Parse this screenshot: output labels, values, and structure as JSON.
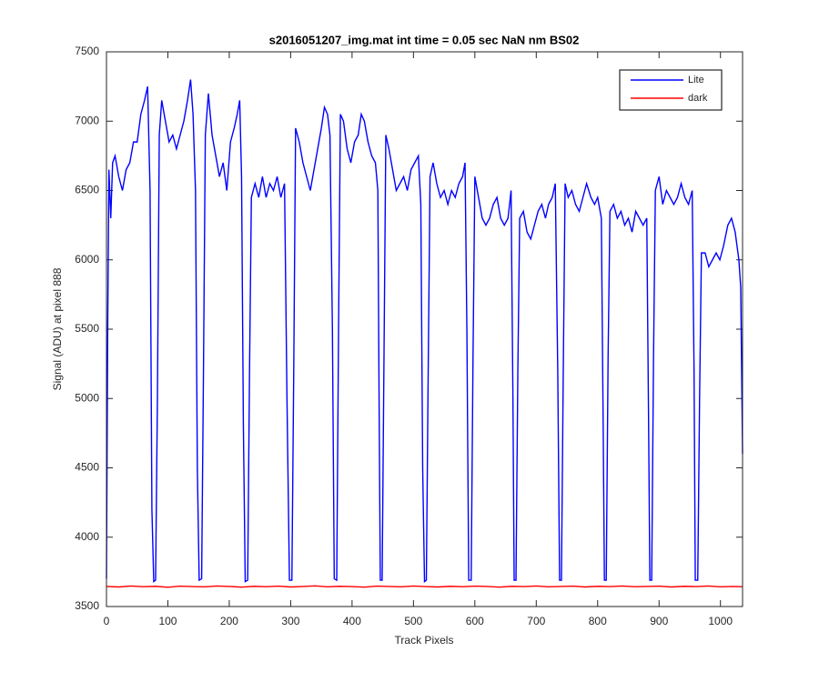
{
  "chart_data": {
    "type": "line",
    "title": "s2016051207_img.mat int time = 0.05 sec  NaN nm BS02",
    "x_label": "Track Pixels",
    "y_label": "Signal (ADU) at pixel 888",
    "xlim": [
      0,
      1036
    ],
    "ylim": [
      3500,
      7500
    ],
    "xticks": [
      0,
      100,
      200,
      300,
      400,
      500,
      600,
      700,
      800,
      900,
      1000
    ],
    "yticks": [
      3500,
      4000,
      4500,
      5000,
      5500,
      6000,
      6500,
      7000,
      7500
    ],
    "legend": "northeast",
    "series": [
      {
        "name": "Lite",
        "color": "#0000ff",
        "x": [
          0,
          2,
          4,
          7,
          10,
          14,
          20,
          26,
          32,
          38,
          44,
          50,
          56,
          62,
          67,
          71,
          74,
          77,
          80,
          83,
          86,
          90,
          96,
          102,
          108,
          114,
          120,
          126,
          132,
          137,
          141,
          145,
          148,
          151,
          155,
          158,
          161,
          166,
          172,
          178,
          184,
          190,
          196,
          202,
          208,
          213,
          217,
          220,
          223,
          226,
          230,
          233,
          236,
          242,
          248,
          254,
          260,
          266,
          272,
          278,
          284,
          290,
          294,
          298,
          302,
          305,
          308,
          314,
          320,
          326,
          332,
          338,
          344,
          350,
          355,
          360,
          364,
          368,
          371,
          375,
          378,
          381,
          386,
          392,
          398,
          404,
          410,
          415,
          420,
          426,
          432,
          438,
          442,
          444,
          446,
          449,
          452,
          455,
          460,
          466,
          472,
          478,
          484,
          490,
          496,
          502,
          508,
          512,
          515,
          518,
          521,
          524,
          527,
          532,
          538,
          544,
          550,
          556,
          562,
          568,
          574,
          580,
          584,
          587,
          590,
          594,
          597,
          600,
          606,
          612,
          618,
          624,
          630,
          636,
          642,
          648,
          654,
          659,
          662,
          664,
          667,
          670,
          673,
          679,
          685,
          691,
          697,
          703,
          709,
          715,
          720,
          726,
          731,
          735,
          738,
          741,
          744,
          747,
          752,
          758,
          764,
          770,
          776,
          782,
          789,
          795,
          800,
          806,
          809,
          811,
          814,
          817,
          820,
          826,
          832,
          838,
          844,
          850,
          856,
          862,
          868,
          874,
          880,
          883,
          885,
          888,
          891,
          894,
          900,
          906,
          912,
          918,
          924,
          930,
          936,
          942,
          948,
          954,
          957,
          959,
          963,
          966,
          969,
          975,
          981,
          987,
          993,
          999,
          1005,
          1012,
          1018,
          1024,
          1030,
          1033,
          1036
        ],
        "values": [
          3700,
          5500,
          6650,
          6300,
          6700,
          6750,
          6600,
          6500,
          6650,
          6700,
          6850,
          6850,
          7050,
          7150,
          7250,
          6500,
          4200,
          3680,
          3690,
          5000,
          6900,
          7150,
          7000,
          6850,
          6900,
          6800,
          6900,
          7000,
          7150,
          7300,
          7050,
          6500,
          4500,
          3690,
          3700,
          5200,
          6900,
          7200,
          6900,
          6750,
          6600,
          6700,
          6500,
          6850,
          6950,
          7050,
          7150,
          6600,
          4800,
          3680,
          3690,
          5200,
          6450,
          6550,
          6450,
          6600,
          6450,
          6550,
          6500,
          6600,
          6450,
          6550,
          5000,
          3690,
          3690,
          5200,
          6950,
          6850,
          6700,
          6600,
          6500,
          6650,
          6800,
          6950,
          7100,
          7050,
          6900,
          5500,
          3700,
          3690,
          5500,
          7050,
          7000,
          6800,
          6700,
          6850,
          6900,
          7050,
          7000,
          6850,
          6750,
          6700,
          6500,
          5000,
          3690,
          3690,
          5300,
          6900,
          6800,
          6650,
          6500,
          6550,
          6600,
          6500,
          6650,
          6700,
          6750,
          6400,
          4500,
          3680,
          3690,
          5200,
          6600,
          6700,
          6550,
          6450,
          6500,
          6400,
          6500,
          6450,
          6550,
          6600,
          6700,
          5500,
          3690,
          3690,
          5300,
          6600,
          6450,
          6300,
          6250,
          6300,
          6400,
          6450,
          6300,
          6250,
          6300,
          6500,
          5000,
          3690,
          3690,
          5200,
          6300,
          6350,
          6200,
          6150,
          6250,
          6350,
          6400,
          6300,
          6400,
          6450,
          6550,
          5200,
          3690,
          3690,
          5200,
          6550,
          6450,
          6500,
          6400,
          6350,
          6450,
          6550,
          6450,
          6400,
          6450,
          6300,
          4800,
          3690,
          3690,
          5300,
          6350,
          6400,
          6300,
          6350,
          6250,
          6300,
          6200,
          6350,
          6300,
          6250,
          6300,
          4800,
          3690,
          3690,
          5300,
          6500,
          6600,
          6400,
          6500,
          6450,
          6400,
          6450,
          6550,
          6450,
          6400,
          6500,
          5200,
          3690,
          3690,
          5000,
          6050,
          6050,
          5950,
          6000,
          6050,
          6000,
          6100,
          6250,
          6300,
          6200,
          6000,
          5800,
          4600
        ]
      },
      {
        "name": "dark",
        "color": "#ff0000",
        "x": [
          0,
          20,
          40,
          60,
          80,
          100,
          120,
          140,
          160,
          180,
          200,
          220,
          240,
          260,
          280,
          300,
          320,
          340,
          360,
          380,
          400,
          420,
          440,
          460,
          480,
          500,
          520,
          540,
          560,
          580,
          600,
          620,
          640,
          660,
          680,
          700,
          720,
          740,
          760,
          780,
          800,
          820,
          840,
          860,
          880,
          900,
          920,
          940,
          960,
          980,
          1000,
          1020,
          1036
        ],
        "values": [
          3645,
          3641,
          3648,
          3643,
          3646,
          3639,
          3647,
          3644,
          3642,
          3648,
          3645,
          3640,
          3646,
          3643,
          3647,
          3641,
          3645,
          3649,
          3642,
          3646,
          3644,
          3640,
          3647,
          3645,
          3642,
          3648,
          3644,
          3641,
          3646,
          3643,
          3647,
          3645,
          3640,
          3646,
          3644,
          3648,
          3642,
          3645,
          3647,
          3641,
          3646,
          3644,
          3648,
          3643,
          3645,
          3647,
          3641,
          3646,
          3644,
          3648,
          3642,
          3645,
          3643
        ]
      }
    ]
  }
}
